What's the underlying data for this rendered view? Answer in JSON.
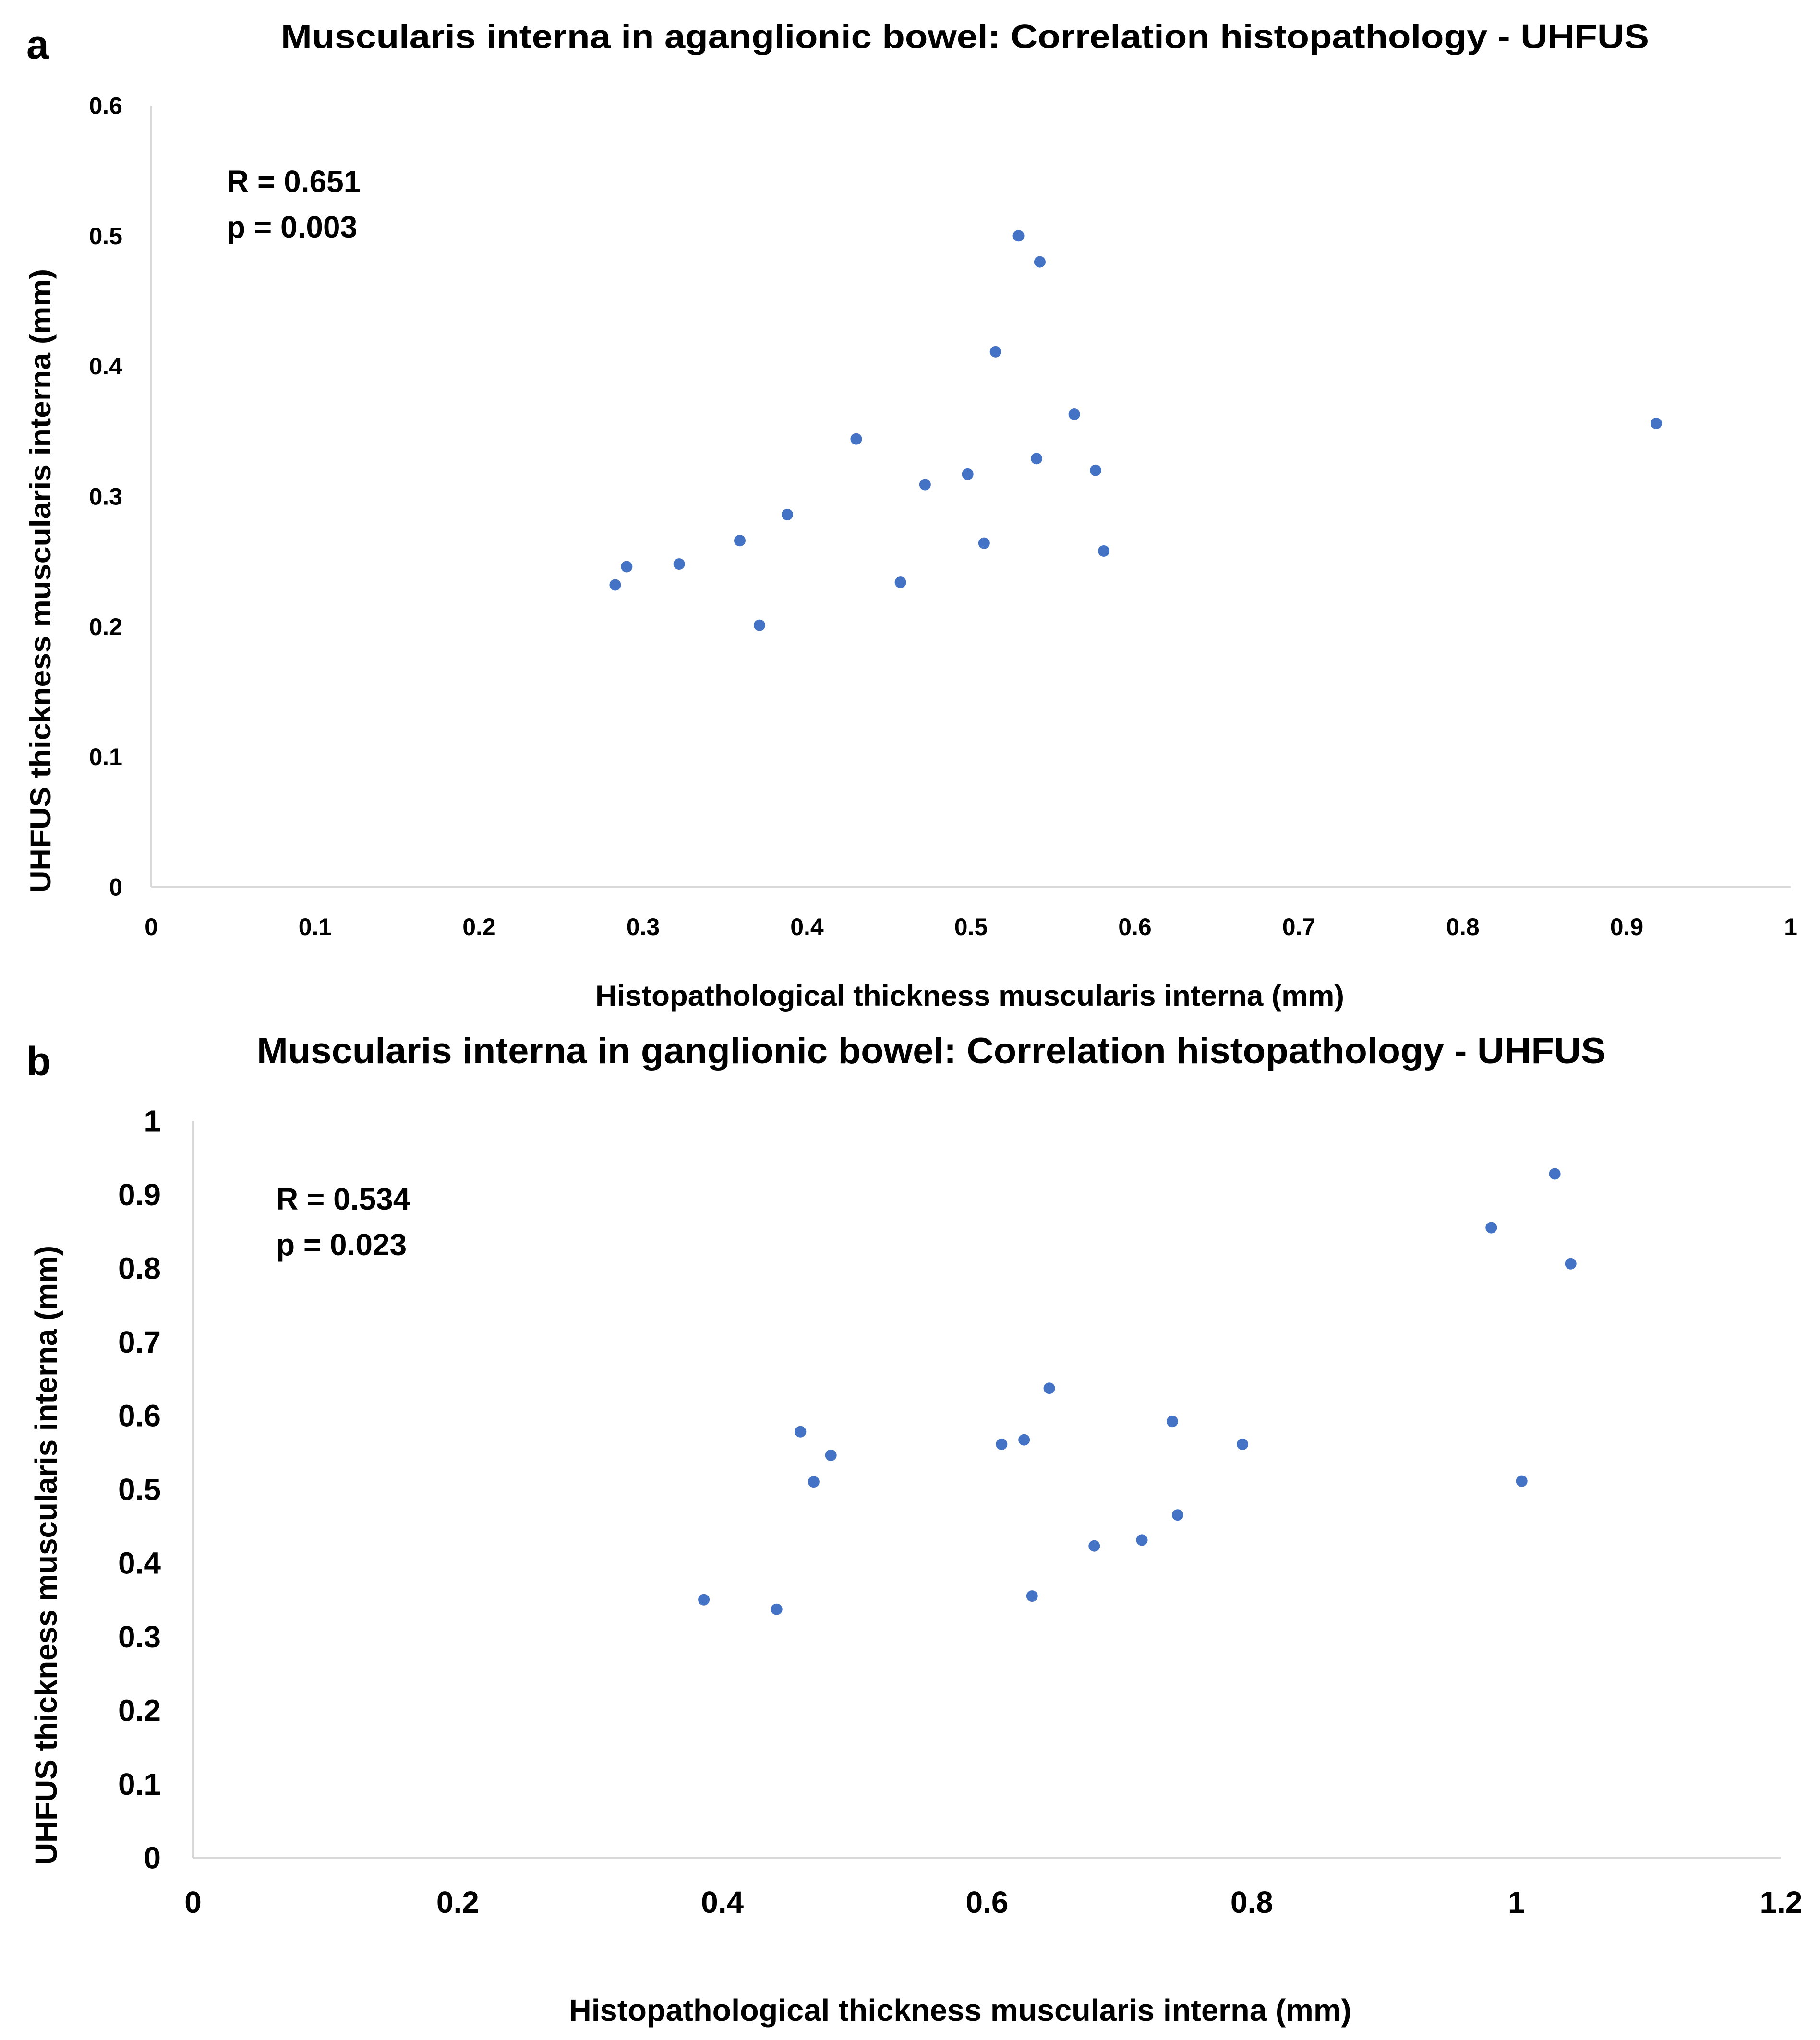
{
  "chart_data": [
    {
      "panel_label": "a",
      "type": "scatter",
      "title": "Muscularis interna in aganglionic bowel: Correlation histopathology - UHFUS",
      "xlabel": "Histopathological thickness muscularis interna (mm)",
      "ylabel": "UHFUS thickness muscularis interna (mm)",
      "xlim": [
        0,
        1
      ],
      "ylim": [
        0,
        0.6
      ],
      "x_ticks": [
        0,
        0.1,
        0.2,
        0.3,
        0.4,
        0.5,
        0.6,
        0.7,
        0.8,
        0.9,
        1
      ],
      "y_ticks": [
        0,
        0.1,
        0.2,
        0.3,
        0.4,
        0.5,
        0.6
      ],
      "x_tick_labels": [
        "0",
        "0.1",
        "0.2",
        "0.3",
        "0.4",
        "0.5",
        "0.6",
        "0.7",
        "0.8",
        "0.9",
        "1"
      ],
      "y_tick_labels": [
        "0",
        "0.1",
        "0.2",
        "0.3",
        "0.4",
        "0.5",
        "0.6"
      ],
      "grid": false,
      "annotations": [
        "R = 0.651",
        "p = 0.003"
      ],
      "marker_color": "#4472C4",
      "series": [
        {
          "name": "aganglionic",
          "points": [
            [
              0.283,
              0.232
            ],
            [
              0.29,
              0.246
            ],
            [
              0.322,
              0.248
            ],
            [
              0.359,
              0.266
            ],
            [
              0.371,
              0.201
            ],
            [
              0.388,
              0.286
            ],
            [
              0.43,
              0.344
            ],
            [
              0.457,
              0.234
            ],
            [
              0.472,
              0.309
            ],
            [
              0.498,
              0.317
            ],
            [
              0.508,
              0.264
            ],
            [
              0.515,
              0.411
            ],
            [
              0.529,
              0.5
            ],
            [
              0.54,
              0.329
            ],
            [
              0.542,
              0.48
            ],
            [
              0.563,
              0.363
            ],
            [
              0.576,
              0.32
            ],
            [
              0.581,
              0.258
            ],
            [
              0.918,
              0.356
            ]
          ]
        }
      ]
    },
    {
      "panel_label": "b",
      "type": "scatter",
      "title": "Muscularis interna in ganglionic bowel: Correlation histopathology - UHFUS",
      "xlabel": "Histopathological thickness muscularis interna (mm)",
      "ylabel": "UHFUS thickness muscularis interna (mm)",
      "xlim": [
        0,
        1.2
      ],
      "ylim": [
        0,
        1
      ],
      "x_ticks": [
        0,
        0.2,
        0.4,
        0.6,
        0.8,
        1,
        1.2
      ],
      "y_ticks": [
        0,
        0.1,
        0.2,
        0.3,
        0.4,
        0.5,
        0.6,
        0.7,
        0.8,
        0.9,
        1
      ],
      "x_tick_labels": [
        "0",
        "0.2",
        "0.4",
        "0.6",
        "0.8",
        "1",
        "1.2"
      ],
      "y_tick_labels": [
        "0",
        "0.1",
        "0.2",
        "0.3",
        "0.4",
        "0.5",
        "0.6",
        "0.7",
        "0.8",
        "0.9",
        "1"
      ],
      "grid": false,
      "annotations": [
        "R = 0.534",
        "p = 0.023"
      ],
      "marker_color": "#4472C4",
      "series": [
        {
          "name": "ganglionic",
          "points": [
            [
              0.386,
              0.35
            ],
            [
              0.441,
              0.337
            ],
            [
              0.459,
              0.578
            ],
            [
              0.469,
              0.51
            ],
            [
              0.482,
              0.546
            ],
            [
              0.611,
              0.561
            ],
            [
              0.628,
              0.567
            ],
            [
              0.634,
              0.355
            ],
            [
              0.647,
              0.637
            ],
            [
              0.681,
              0.423
            ],
            [
              0.717,
              0.431
            ],
            [
              0.74,
              0.592
            ],
            [
              0.744,
              0.465
            ],
            [
              0.793,
              0.561
            ],
            [
              0.981,
              0.855
            ],
            [
              1.004,
              0.511
            ],
            [
              1.029,
              0.928
            ],
            [
              1.041,
              0.806
            ]
          ]
        }
      ]
    }
  ]
}
